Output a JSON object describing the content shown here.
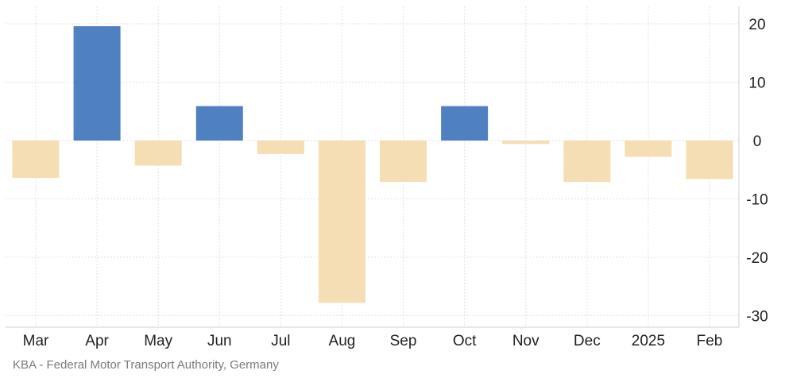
{
  "source": "KBA - Federal Motor Transport Authority, Germany",
  "colors": {
    "positive": "#4f80bf",
    "negative": "#f5deb3",
    "grid": "#e2e2e2",
    "axis": "#cfcfcf"
  },
  "chart_data": {
    "type": "bar",
    "categories": [
      "Mar",
      "Apr",
      "May",
      "Jun",
      "Jul",
      "Aug",
      "Sep",
      "Oct",
      "Nov",
      "Dec",
      "2025",
      "Feb"
    ],
    "values": [
      -6.4,
      19.6,
      -4.3,
      5.9,
      -2.3,
      -27.8,
      -7.1,
      5.9,
      -0.6,
      -7.1,
      -2.8,
      -6.6
    ],
    "y_ticks": [
      20,
      10,
      0,
      -10,
      -20,
      -30
    ],
    "ylim": [
      -32,
      23
    ],
    "grid": true,
    "axis_position": "right"
  }
}
